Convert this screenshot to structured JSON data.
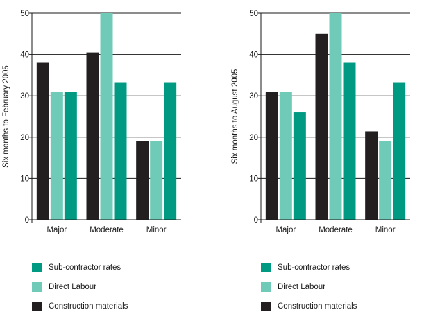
{
  "colors": {
    "sub_contractor": "#009a83",
    "direct_labour": "#6fcbb8",
    "construction_materials": "#231f20",
    "axis": "#1a1a1a"
  },
  "chart_data": [
    {
      "type": "bar",
      "title": "",
      "xlabel": "",
      "ylabel": "Six months to February 2005",
      "ylim": [
        0,
        50
      ],
      "yticks": [
        "0",
        "10",
        "20",
        "30",
        "40",
        "50"
      ],
      "categories": [
        "Major",
        "Moderate",
        "Minor"
      ],
      "series": [
        {
          "name": "Construction materials",
          "color": "#231f20",
          "values": [
            38,
            40.5,
            19
          ]
        },
        {
          "name": "Direct Labour",
          "color": "#6fcbb8",
          "values": [
            31,
            50,
            19
          ]
        },
        {
          "name": "Sub-contractor rates",
          "color": "#009a83",
          "values": [
            31,
            33.3,
            33.3
          ]
        }
      ],
      "grid": "horizontal",
      "legend_position": "bottom"
    },
    {
      "type": "bar",
      "title": "",
      "xlabel": "",
      "ylabel": "Six months to August 2005",
      "ylim": [
        0,
        50
      ],
      "yticks": [
        "0",
        "10",
        "20",
        "30",
        "40",
        "50"
      ],
      "categories": [
        "Major",
        "Moderate",
        "Minor"
      ],
      "series": [
        {
          "name": "Construction materials",
          "color": "#231f20",
          "values": [
            31,
            45,
            21.4
          ]
        },
        {
          "name": "Direct Labour",
          "color": "#6fcbb8",
          "values": [
            31,
            50,
            19
          ]
        },
        {
          "name": "Sub-contractor rates",
          "color": "#009a83",
          "values": [
            26,
            38,
            33.3
          ]
        }
      ],
      "grid": "horizontal",
      "legend_position": "bottom"
    }
  ],
  "legends": [
    {
      "items": [
        {
          "label": "Sub-contractor rates",
          "color": "#009a83"
        },
        {
          "label": "Direct Labour",
          "color": "#6fcbb8"
        },
        {
          "label": "Construction materials",
          "color": "#231f20"
        }
      ]
    },
    {
      "items": [
        {
          "label": "Sub-contractor rates",
          "color": "#009a83"
        },
        {
          "label": "Direct Labour",
          "color": "#6fcbb8"
        },
        {
          "label": "Construction materials",
          "color": "#231f20"
        }
      ]
    }
  ]
}
